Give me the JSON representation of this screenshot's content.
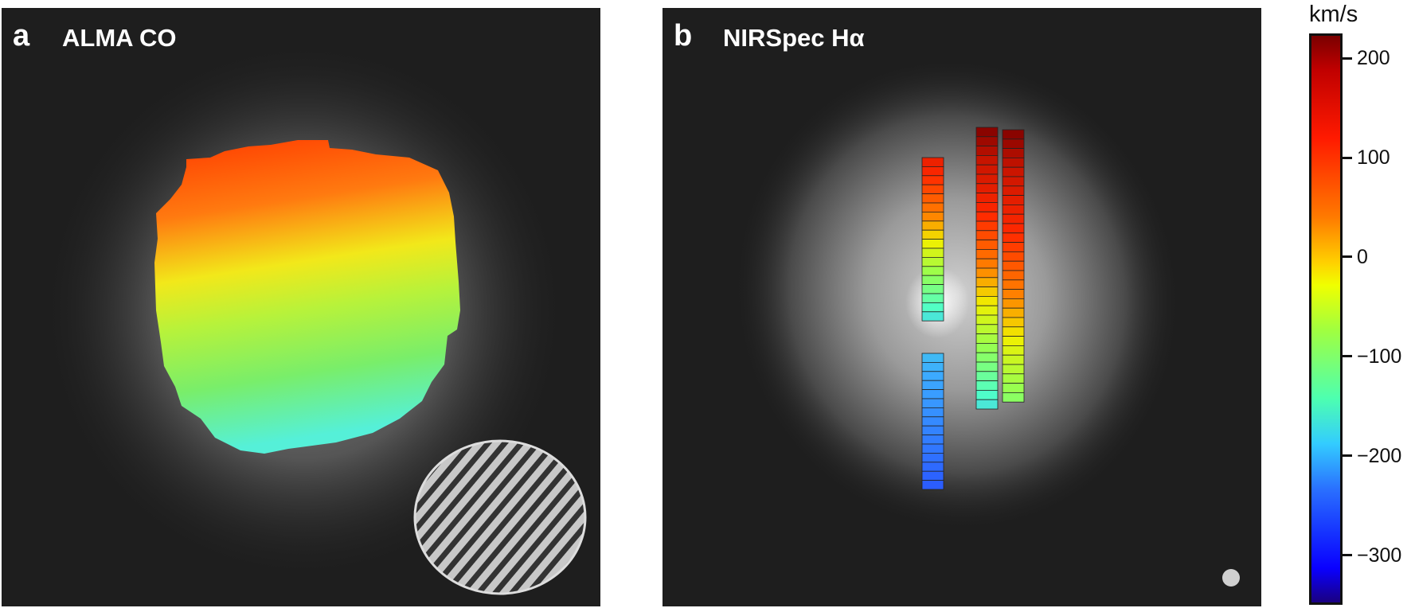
{
  "panel_a": {
    "letter": "a",
    "title": "ALMA CO"
  },
  "panel_b": {
    "letter": "b",
    "title": "NIRSpec Hα"
  },
  "colorbar": {
    "unit": "km/s",
    "min": -350,
    "max": 225,
    "ticks": [
      {
        "value": 200,
        "label": "200"
      },
      {
        "value": 100,
        "label": "100"
      },
      {
        "value": 0,
        "label": "0"
      },
      {
        "value": -100,
        "label": "−100"
      },
      {
        "value": -200,
        "label": "−200"
      },
      {
        "value": -300,
        "label": "−300"
      }
    ]
  },
  "colors": {
    "background_image": "#1e1e1e",
    "beam_fill": "#c8c8c8",
    "beam_hatch": "#333333"
  }
}
